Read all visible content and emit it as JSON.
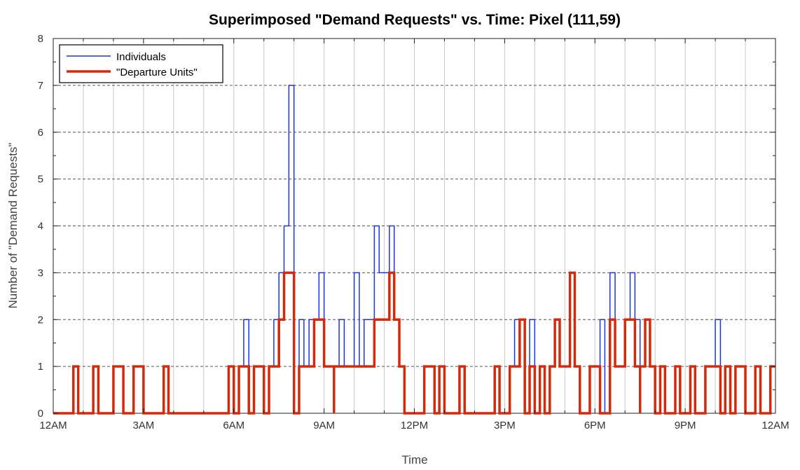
{
  "chart_data": {
    "type": "line",
    "style": "stairs",
    "title": "Superimposed \"Demand Requests\" vs. Time: Pixel (111,59)",
    "xlabel": "Time",
    "ylabel": "Number of \"Demand Requests\"",
    "xlim_hours": [
      0,
      24
    ],
    "ylim": [
      0,
      8
    ],
    "x_tick_labels": [
      "12AM",
      "3AM",
      "6AM",
      "9AM",
      "12PM",
      "3PM",
      "6PM",
      "9PM",
      "12AM"
    ],
    "x_tick_hours": [
      0,
      3,
      6,
      9,
      12,
      15,
      18,
      21,
      24
    ],
    "y_ticks": [
      0,
      1,
      2,
      3,
      4,
      5,
      6,
      7,
      8
    ],
    "grid": true,
    "legend_position": "top-left",
    "series": [
      {
        "name": "Individuals",
        "color": "#1f35d6",
        "points": [
          [
            0,
            0
          ],
          [
            0.67,
            1
          ],
          [
            0.83,
            0
          ],
          [
            1.33,
            1
          ],
          [
            1.5,
            0
          ],
          [
            2.0,
            1
          ],
          [
            2.33,
            0
          ],
          [
            2.67,
            1
          ],
          [
            3.0,
            0
          ],
          [
            3.67,
            1
          ],
          [
            3.83,
            0
          ],
          [
            5.83,
            1
          ],
          [
            6.0,
            0
          ],
          [
            6.17,
            1
          ],
          [
            6.33,
            2
          ],
          [
            6.5,
            0
          ],
          [
            6.67,
            1
          ],
          [
            7.0,
            0
          ],
          [
            7.17,
            1
          ],
          [
            7.33,
            2
          ],
          [
            7.5,
            3
          ],
          [
            7.67,
            4
          ],
          [
            7.83,
            7
          ],
          [
            8.0,
            0
          ],
          [
            8.17,
            2
          ],
          [
            8.33,
            1
          ],
          [
            8.5,
            2
          ],
          [
            8.67,
            2
          ],
          [
            8.83,
            3
          ],
          [
            9.0,
            1
          ],
          [
            9.33,
            1
          ],
          [
            9.5,
            2
          ],
          [
            9.67,
            1
          ],
          [
            10.0,
            3
          ],
          [
            10.17,
            1
          ],
          [
            10.33,
            2
          ],
          [
            10.67,
            4
          ],
          [
            10.83,
            3
          ],
          [
            11.17,
            4
          ],
          [
            11.33,
            2
          ],
          [
            11.5,
            1
          ],
          [
            11.67,
            0
          ],
          [
            12.33,
            1
          ],
          [
            12.67,
            0
          ],
          [
            12.83,
            1
          ],
          [
            13.0,
            0
          ],
          [
            13.5,
            1
          ],
          [
            13.67,
            0
          ],
          [
            14.67,
            1
          ],
          [
            14.83,
            0
          ],
          [
            15.17,
            1
          ],
          [
            15.33,
            2
          ],
          [
            15.5,
            2
          ],
          [
            15.67,
            0
          ],
          [
            15.83,
            2
          ],
          [
            16.0,
            0
          ],
          [
            16.17,
            1
          ],
          [
            16.33,
            0
          ],
          [
            16.5,
            1
          ],
          [
            16.67,
            2
          ],
          [
            16.83,
            1
          ],
          [
            17.17,
            3
          ],
          [
            17.33,
            1
          ],
          [
            17.5,
            0
          ],
          [
            17.83,
            1
          ],
          [
            18.17,
            2
          ],
          [
            18.33,
            0
          ],
          [
            18.5,
            3
          ],
          [
            18.67,
            1
          ],
          [
            18.83,
            1
          ],
          [
            19.0,
            2
          ],
          [
            19.17,
            3
          ],
          [
            19.33,
            2
          ],
          [
            19.5,
            1
          ],
          [
            19.67,
            2
          ],
          [
            19.83,
            1
          ],
          [
            20.0,
            0
          ],
          [
            20.17,
            1
          ],
          [
            20.33,
            0
          ],
          [
            20.67,
            1
          ],
          [
            20.83,
            0
          ],
          [
            21.17,
            1
          ],
          [
            21.33,
            0
          ],
          [
            21.67,
            1
          ],
          [
            21.83,
            1
          ],
          [
            22.0,
            2
          ],
          [
            22.17,
            0
          ],
          [
            22.33,
            1
          ],
          [
            22.5,
            0
          ],
          [
            22.67,
            1
          ],
          [
            23.0,
            0
          ],
          [
            23.33,
            1
          ],
          [
            23.5,
            0
          ],
          [
            23.83,
            1
          ],
          [
            24.0,
            1
          ]
        ]
      },
      {
        "name": "\"Departure Units\"",
        "color": "#d42a0c",
        "points": [
          [
            0,
            0
          ],
          [
            0.67,
            1
          ],
          [
            0.83,
            0
          ],
          [
            1.33,
            1
          ],
          [
            1.5,
            0
          ],
          [
            2.0,
            1
          ],
          [
            2.33,
            0
          ],
          [
            2.67,
            1
          ],
          [
            3.0,
            0
          ],
          [
            3.67,
            1
          ],
          [
            3.83,
            0
          ],
          [
            5.83,
            1
          ],
          [
            6.0,
            0
          ],
          [
            6.17,
            1
          ],
          [
            6.33,
            1
          ],
          [
            6.5,
            0
          ],
          [
            6.67,
            1
          ],
          [
            7.0,
            0
          ],
          [
            7.17,
            1
          ],
          [
            7.5,
            2
          ],
          [
            7.67,
            3
          ],
          [
            8.0,
            0
          ],
          [
            8.17,
            1
          ],
          [
            8.67,
            2
          ],
          [
            8.83,
            2
          ],
          [
            9.0,
            1
          ],
          [
            9.33,
            0
          ],
          [
            9.33,
            1
          ],
          [
            9.5,
            1
          ],
          [
            10.33,
            1
          ],
          [
            10.67,
            2
          ],
          [
            11.17,
            3
          ],
          [
            11.33,
            2
          ],
          [
            11.5,
            1
          ],
          [
            11.67,
            0
          ],
          [
            12.33,
            1
          ],
          [
            12.67,
            0
          ],
          [
            12.83,
            1
          ],
          [
            13.0,
            0
          ],
          [
            13.5,
            1
          ],
          [
            13.67,
            0
          ],
          [
            14.67,
            1
          ],
          [
            14.83,
            0
          ],
          [
            15.17,
            1
          ],
          [
            15.33,
            1
          ],
          [
            15.5,
            2
          ],
          [
            15.67,
            0
          ],
          [
            15.83,
            1
          ],
          [
            16.0,
            0
          ],
          [
            16.17,
            1
          ],
          [
            16.33,
            0
          ],
          [
            16.5,
            1
          ],
          [
            16.67,
            2
          ],
          [
            16.83,
            1
          ],
          [
            17.17,
            3
          ],
          [
            17.33,
            1
          ],
          [
            17.5,
            0
          ],
          [
            17.83,
            1
          ],
          [
            18.17,
            0
          ],
          [
            18.33,
            0
          ],
          [
            18.5,
            2
          ],
          [
            18.67,
            1
          ],
          [
            18.83,
            1
          ],
          [
            19.0,
            2
          ],
          [
            19.33,
            1
          ],
          [
            19.5,
            0
          ],
          [
            19.5,
            1
          ],
          [
            19.67,
            2
          ],
          [
            19.83,
            1
          ],
          [
            20.0,
            0
          ],
          [
            20.17,
            1
          ],
          [
            20.33,
            0
          ],
          [
            20.67,
            1
          ],
          [
            20.83,
            0
          ],
          [
            21.17,
            1
          ],
          [
            21.33,
            0
          ],
          [
            21.67,
            1
          ],
          [
            22.17,
            0
          ],
          [
            22.33,
            1
          ],
          [
            22.5,
            0
          ],
          [
            22.67,
            1
          ],
          [
            23.0,
            0
          ],
          [
            23.33,
            1
          ],
          [
            23.5,
            0
          ],
          [
            23.83,
            1
          ],
          [
            24.0,
            1
          ]
        ]
      }
    ]
  }
}
